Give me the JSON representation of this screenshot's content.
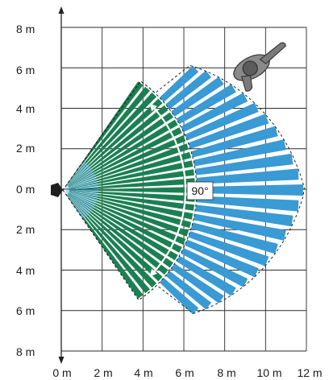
{
  "y_axis_labels": [
    "8 m",
    "6 m",
    "4 m",
    "2 m",
    "0 m",
    "2 m",
    "4 m",
    "6 m",
    "8 m"
  ],
  "x_axis_labels": [
    "0 m",
    "2 m",
    "4 m",
    "6 m",
    "8 m",
    "10 m",
    "12 m"
  ],
  "angle_label": "90°",
  "colors": {
    "near_zone": "#1b8051",
    "far_zone": "#3a9ad3",
    "grid": "#2a2a2a",
    "outline": "#222222",
    "sensor": "#1f1f1f",
    "person": "#6e6e6e"
  },
  "icons": [
    "sensor-icon",
    "person-icon",
    "angle-arc-icon"
  ]
}
